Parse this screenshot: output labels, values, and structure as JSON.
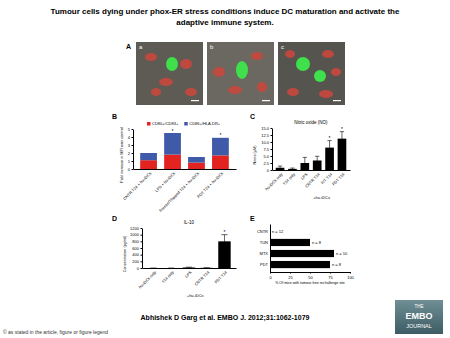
{
  "header": {
    "title": [
      "Tumour cells dying under phox-ER stress conditions induce DC maturation and activate the",
      "adaptive immune system."
    ]
  },
  "image_panel": {
    "label": "A",
    "images": [
      "a",
      "b",
      "c"
    ]
  },
  "chart_data": [
    {
      "type": "bar",
      "panel": "B",
      "stacked": true,
      "legend": "top",
      "categories": [
        "CNTR T24 + hu-iDCs",
        "LPS + hu-iDCs",
        "Freeze/Thawed T24 + hu-iDCs",
        "PDT T24 + hu-iDCs"
      ],
      "series": [
        {
          "name": "CD80+/CD83+",
          "color": "#e3231f",
          "values": [
            1.1,
            1.8,
            0.8,
            1.7
          ]
        },
        {
          "name": "CD86+/HLA-DR+",
          "color": "#3f5aa8",
          "values": [
            0.9,
            2.7,
            0.7,
            2.2
          ]
        }
      ],
      "ylabel": "Fold increase in MFI over control",
      "ylim": [
        0,
        5
      ],
      "yticks": [
        0,
        1,
        2,
        3,
        4,
        5
      ],
      "annotations": [
        {
          "category": 1,
          "text": "*"
        },
        {
          "category": 3,
          "text": "*"
        }
      ]
    },
    {
      "type": "bar",
      "panel": "C",
      "title": "Nitric oxide (NO)",
      "color": "#000000",
      "categories": [
        "hu-iDCs only",
        "T24 only",
        "LPS",
        "CNTR T24",
        "F/T T24",
        "PDT T24"
      ],
      "values": [
        0.8,
        0.4,
        2.5,
        3.4,
        8.0,
        11.2
      ],
      "errors": [
        0.6,
        0.3,
        2.0,
        1.5,
        2.5,
        2.5
      ],
      "xlabel": "+hu-iDCs",
      "ylabel": "Nitrite (µM)",
      "ylim": [
        0,
        15
      ],
      "yticks": [
        0,
        2.5,
        {
          "value": 5,
          "label": "5.0"
        },
        7.5,
        {
          "value": 10,
          "label": "10.0"
        },
        12.5,
        {
          "value": 15,
          "label": "15.0"
        }
      ],
      "annotations": [
        {
          "category": 4,
          "text": "*"
        },
        {
          "category": 5,
          "text": "*"
        }
      ]
    },
    {
      "type": "bar",
      "panel": "D",
      "title": "IL-10",
      "color": "#000000",
      "categories": [
        "hu-iDCs only",
        "T24 only",
        "LPS",
        "CNTR T24",
        "PDT T24"
      ],
      "values": [
        0,
        0,
        15,
        5,
        800
      ],
      "errors": [
        0,
        0,
        10,
        5,
        200
      ],
      "xlabel": "+hu-iDCs",
      "ylabel": "Concentration (pg/ml)",
      "ylim": [
        0,
        1200
      ],
      "yticks": [
        0,
        200,
        400,
        600,
        800,
        1000,
        1200
      ],
      "annotations": [
        {
          "category": 4,
          "text": "*"
        }
      ]
    },
    {
      "type": "bar",
      "panel": "E",
      "orientation": "horizontal",
      "color": "#000000",
      "categories": [
        "CNTR",
        "TUN",
        "MTX",
        "PDT"
      ],
      "values": [
        0,
        50,
        80,
        75
      ],
      "xlabel": "% Of mice with tumour-free rechallenge site",
      "xlim": [
        0,
        100
      ],
      "xticks": [
        0,
        25,
        50,
        75,
        100
      ],
      "annotations": [
        {
          "category": 0,
          "text": "n = 12"
        },
        {
          "category": 1,
          "text": "n = 8"
        },
        {
          "category": 2,
          "text": "n = 10"
        },
        {
          "category": 3,
          "text": "n = 8"
        }
      ]
    }
  ],
  "footer": {
    "citation": "Abhishek D Garg et al. EMBO J. 2012;31:1062-1079",
    "copyright": "© as stated in the article, figure or figure legend",
    "logo": [
      "THE",
      "EMBO",
      "JOURNAL"
    ]
  }
}
